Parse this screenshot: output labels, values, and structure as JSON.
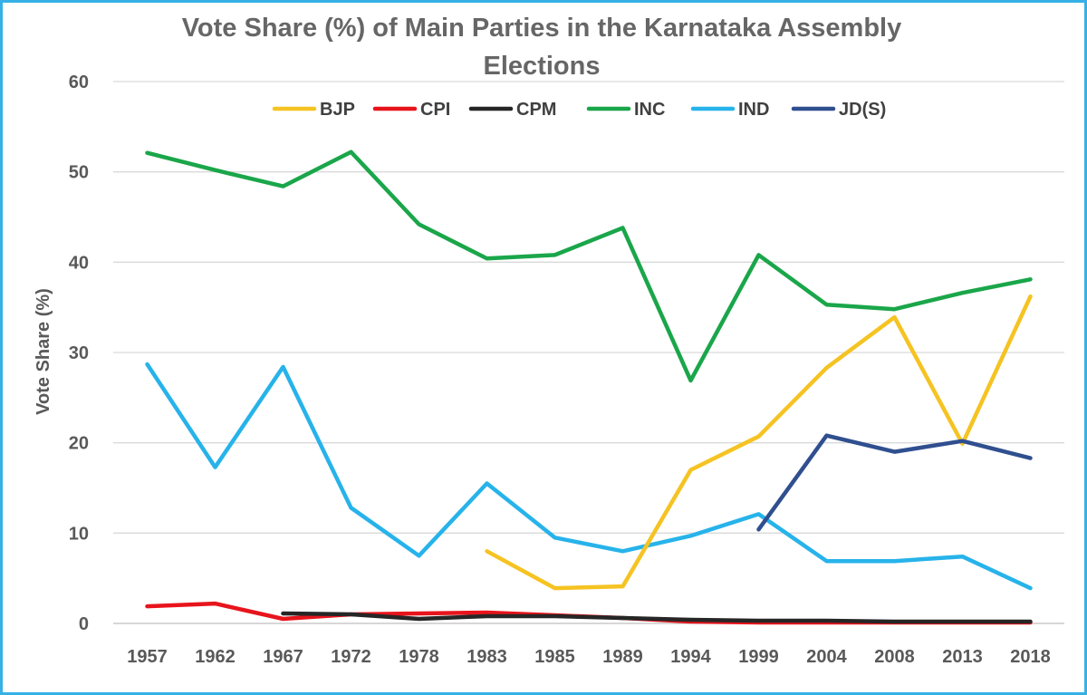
{
  "chart_data": {
    "type": "line",
    "title_line1": "Vote Share (%) of Main Parties in the Karnataka Assembly",
    "title_line2": "Elections",
    "ylabel": "Vote Share (%)",
    "xlabel": "",
    "ylim": [
      0,
      60
    ],
    "yticks": [
      0,
      10,
      20,
      30,
      40,
      50,
      60
    ],
    "grid": true,
    "legend_position": "top",
    "categories": [
      "1957",
      "1962",
      "1967",
      "1972",
      "1978",
      "1983",
      "1985",
      "1989",
      "1994",
      "1999",
      "2004",
      "2008",
      "2013",
      "2018"
    ],
    "series": [
      {
        "name": "BJP",
        "color": "#f5c322",
        "values": [
          null,
          null,
          null,
          null,
          null,
          8.0,
          3.9,
          4.1,
          17.0,
          20.7,
          28.3,
          33.9,
          19.9,
          36.2
        ]
      },
      {
        "name": "CPI",
        "color": "#e8141c",
        "values": [
          1.9,
          2.2,
          0.5,
          1.0,
          1.1,
          1.2,
          0.9,
          0.6,
          0.2,
          0.1,
          0.1,
          0.1,
          0.1,
          0.1
        ]
      },
      {
        "name": "CPM",
        "color": "#262626",
        "values": [
          null,
          null,
          1.1,
          1.0,
          0.5,
          0.8,
          0.8,
          0.6,
          0.4,
          0.3,
          0.3,
          0.2,
          0.2,
          0.2
        ]
      },
      {
        "name": "INC",
        "color": "#1aa64a",
        "values": [
          52.1,
          50.2,
          48.4,
          52.2,
          44.2,
          40.4,
          40.8,
          43.8,
          26.9,
          40.8,
          35.3,
          34.8,
          36.6,
          38.1
        ]
      },
      {
        "name": "IND",
        "color": "#27b3ea",
        "values": [
          28.7,
          17.3,
          28.4,
          12.8,
          7.5,
          15.5,
          9.5,
          8.0,
          9.7,
          12.1,
          6.9,
          6.9,
          7.4,
          3.9
        ]
      },
      {
        "name": "JD(S)",
        "color": "#2f4f8f",
        "values": [
          null,
          null,
          null,
          null,
          null,
          null,
          null,
          null,
          null,
          10.4,
          20.8,
          19.0,
          20.2,
          18.3
        ]
      }
    ]
  }
}
